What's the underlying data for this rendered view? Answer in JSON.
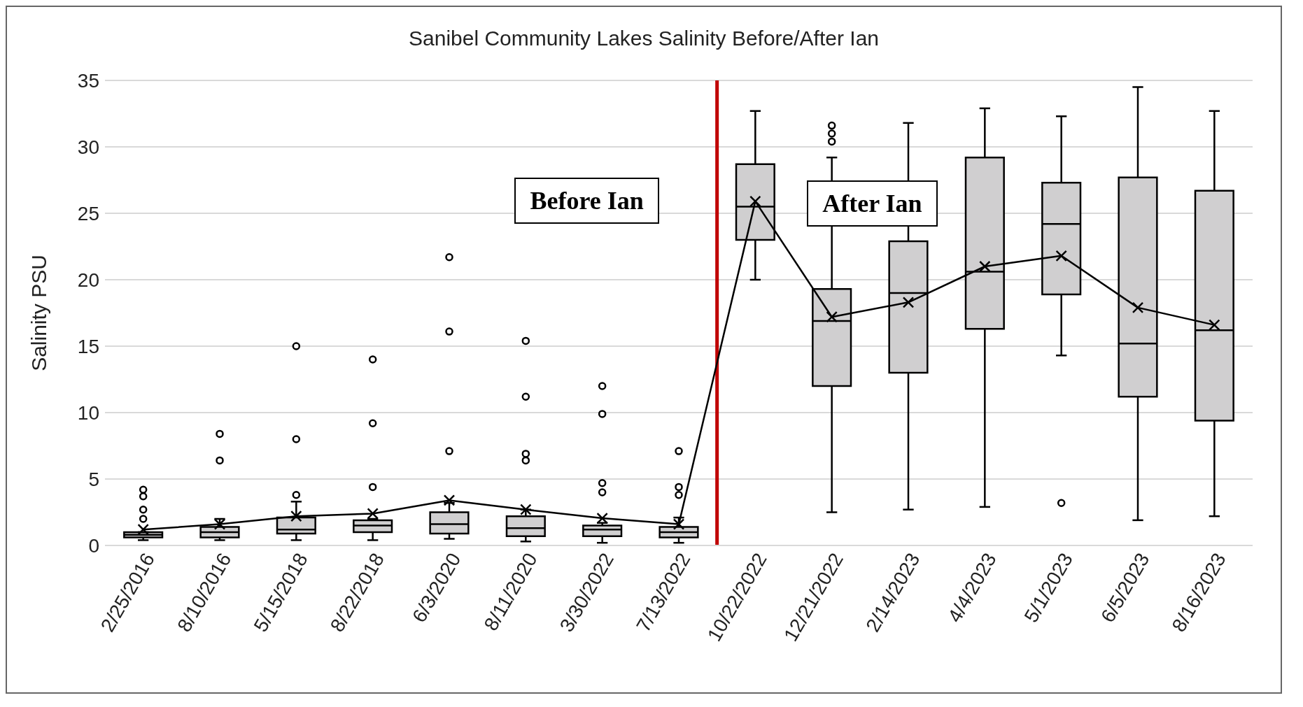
{
  "chart_data": {
    "type": "box",
    "title": "Sanibel Community Lakes Salinity Before/After Ian",
    "ylabel": "Salinity PSU",
    "categories": [
      "2/25/2016",
      "8/10/2016",
      "5/15/2018",
      "8/22/2018",
      "6/3/2020",
      "8/11/2020",
      "3/30/2022",
      "7/13/2022",
      "10/22/2022",
      "12/21/2022",
      "2/14/2023",
      "4/4/2023",
      "5/1/2023",
      "6/5/2023",
      "8/16/2023"
    ],
    "boxes": [
      {
        "low": 0.4,
        "q1": 0.6,
        "median": 0.8,
        "q3": 1.0,
        "high": 1.0,
        "outliers": [
          2.0,
          2.7,
          3.7,
          4.2
        ]
      },
      {
        "low": 0.4,
        "q1": 0.6,
        "median": 1.0,
        "q3": 1.4,
        "high": 2.0,
        "outliers": [
          6.4,
          8.4
        ]
      },
      {
        "low": 0.4,
        "q1": 0.9,
        "median": 1.2,
        "q3": 2.1,
        "high": 3.3,
        "outliers": [
          3.8,
          8.0,
          15.0
        ]
      },
      {
        "low": 0.4,
        "q1": 1.0,
        "median": 1.5,
        "q3": 1.9,
        "high": 2.0,
        "outliers": [
          4.4,
          9.2,
          14.0
        ]
      },
      {
        "low": 0.5,
        "q1": 0.9,
        "median": 1.6,
        "q3": 2.5,
        "high": 3.2,
        "outliers": [
          7.1,
          16.1,
          21.7
        ]
      },
      {
        "low": 0.3,
        "q1": 0.7,
        "median": 1.3,
        "q3": 2.2,
        "high": 2.7,
        "outliers": [
          6.4,
          6.9,
          11.2,
          15.4
        ]
      },
      {
        "low": 0.2,
        "q1": 0.7,
        "median": 1.2,
        "q3": 1.5,
        "high": 1.7,
        "outliers": [
          4.0,
          4.7,
          9.9,
          12.0
        ]
      },
      {
        "low": 0.2,
        "q1": 0.6,
        "median": 1.0,
        "q3": 1.4,
        "high": 2.1,
        "outliers": [
          3.8,
          4.4,
          7.1
        ]
      },
      {
        "low": 20.0,
        "q1": 23.0,
        "median": 25.5,
        "q3": 28.7,
        "high": 32.7
      },
      {
        "low": 2.5,
        "q1": 12.0,
        "median": 16.9,
        "q3": 19.3,
        "high": 29.2,
        "outliers": [
          30.4,
          31.0,
          31.6
        ]
      },
      {
        "low": 2.7,
        "q1": 13.0,
        "median": 19.0,
        "q3": 22.9,
        "high": 31.8
      },
      {
        "low": 2.9,
        "q1": 16.3,
        "median": 20.6,
        "q3": 29.2,
        "high": 32.9
      },
      {
        "low": 14.3,
        "q1": 18.9,
        "median": 24.2,
        "q3": 27.3,
        "high": 32.3,
        "outliers": [
          3.2
        ]
      },
      {
        "low": 1.9,
        "q1": 11.2,
        "median": 15.2,
        "q3": 27.7,
        "high": 34.5
      },
      {
        "low": 2.2,
        "q1": 9.4,
        "median": 16.2,
        "q3": 26.7,
        "high": 32.7
      }
    ],
    "series": [
      {
        "type": "line",
        "color": "#000000",
        "marker": "cross",
        "values": [
          1.2,
          1.6,
          2.2,
          2.4,
          3.4,
          2.7,
          2.05,
          1.6,
          25.9,
          17.2,
          18.3,
          21.0,
          21.8,
          17.9,
          16.6
        ]
      }
    ],
    "color": "#d0cfd0",
    "ylim": [
      0,
      35
    ],
    "yticks": [
      0,
      5,
      10,
      15,
      20,
      25,
      30,
      35
    ],
    "grid": "y",
    "ref_lines": [
      {
        "axis": "x",
        "value": "10/22/2022",
        "color": "#c00000"
      }
    ],
    "annotations": [
      "Before Ian",
      "After Ian"
    ]
  }
}
